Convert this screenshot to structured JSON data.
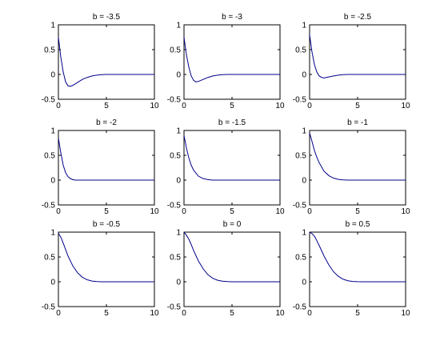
{
  "chart_data": [
    {
      "type": "line",
      "title": "b = -3.5",
      "xlim": [
        0,
        10
      ],
      "ylim": [
        -0.5,
        1
      ],
      "x_ticks": [
        "0",
        "5",
        "10"
      ],
      "y_ticks": [
        "-0.5",
        "0",
        "0.5",
        "1"
      ],
      "series": [
        {
          "color": "#00008b",
          "points": [
            [
              0,
              0.75
            ],
            [
              0.25,
              0.35
            ],
            [
              0.5,
              0.05
            ],
            [
              0.75,
              -0.15
            ],
            [
              1.0,
              -0.23
            ],
            [
              1.25,
              -0.24
            ],
            [
              1.5,
              -0.22
            ],
            [
              2.0,
              -0.16
            ],
            [
              2.5,
              -0.1
            ],
            [
              3.0,
              -0.06
            ],
            [
              3.5,
              -0.03
            ],
            [
              4.0,
              -0.015
            ],
            [
              4.5,
              -0.005
            ],
            [
              5.0,
              0
            ],
            [
              6,
              0
            ],
            [
              8,
              0
            ],
            [
              10,
              0
            ]
          ]
        }
      ]
    },
    {
      "type": "line",
      "title": "b = -3",
      "xlim": [
        0,
        10
      ],
      "ylim": [
        -0.5,
        1
      ],
      "x_ticks": [
        "0",
        "5",
        "10"
      ],
      "y_ticks": [
        "-0.5",
        "0",
        "0.5",
        "1"
      ],
      "series": [
        {
          "color": "#00008b",
          "points": [
            [
              0,
              0.75
            ],
            [
              0.25,
              0.4
            ],
            [
              0.5,
              0.15
            ],
            [
              0.75,
              -0.03
            ],
            [
              1.0,
              -0.12
            ],
            [
              1.25,
              -0.15
            ],
            [
              1.5,
              -0.14
            ],
            [
              2.0,
              -0.1
            ],
            [
              2.5,
              -0.06
            ],
            [
              3.0,
              -0.03
            ],
            [
              3.5,
              -0.015
            ],
            [
              4.0,
              -0.005
            ],
            [
              4.5,
              0
            ],
            [
              6,
              0
            ],
            [
              8,
              0
            ],
            [
              10,
              0
            ]
          ]
        }
      ]
    },
    {
      "type": "line",
      "title": "b = -2.5",
      "xlim": [
        0,
        10
      ],
      "ylim": [
        -0.5,
        1
      ],
      "x_ticks": [
        "0",
        "5",
        "10"
      ],
      "y_ticks": [
        "-0.5",
        "0",
        "0.5",
        "1"
      ],
      "series": [
        {
          "color": "#00008b",
          "points": [
            [
              0,
              0.8
            ],
            [
              0.25,
              0.45
            ],
            [
              0.5,
              0.2
            ],
            [
              0.75,
              0.05
            ],
            [
              1.0,
              -0.03
            ],
            [
              1.25,
              -0.06
            ],
            [
              1.5,
              -0.07
            ],
            [
              2.0,
              -0.05
            ],
            [
              2.5,
              -0.03
            ],
            [
              3.0,
              -0.015
            ],
            [
              3.5,
              -0.005
            ],
            [
              4.0,
              0
            ],
            [
              6,
              0
            ],
            [
              8,
              0
            ],
            [
              10,
              0
            ]
          ]
        }
      ]
    },
    {
      "type": "line",
      "title": "b = -2",
      "xlim": [
        0,
        10
      ],
      "ylim": [
        -0.5,
        1
      ],
      "x_ticks": [
        "0",
        "5",
        "10"
      ],
      "y_ticks": [
        "-0.5",
        "0",
        "0.5",
        "1"
      ],
      "series": [
        {
          "color": "#00008b",
          "points": [
            [
              0,
              0.85
            ],
            [
              0.25,
              0.55
            ],
            [
              0.5,
              0.3
            ],
            [
              0.75,
              0.15
            ],
            [
              1.0,
              0.07
            ],
            [
              1.25,
              0.03
            ],
            [
              1.5,
              0.01
            ],
            [
              1.75,
              0
            ],
            [
              2.0,
              0
            ],
            [
              4,
              0
            ],
            [
              6,
              0
            ],
            [
              8,
              0
            ],
            [
              10,
              0
            ]
          ]
        }
      ]
    },
    {
      "type": "line",
      "title": "b = -1.5",
      "xlim": [
        0,
        10
      ],
      "ylim": [
        -0.5,
        1
      ],
      "x_ticks": [
        "0",
        "5",
        "10"
      ],
      "y_ticks": [
        "-0.5",
        "0",
        "0.5",
        "1"
      ],
      "series": [
        {
          "color": "#00008b",
          "points": [
            [
              0,
              0.9
            ],
            [
              0.25,
              0.65
            ],
            [
              0.5,
              0.45
            ],
            [
              0.75,
              0.3
            ],
            [
              1.0,
              0.2
            ],
            [
              1.5,
              0.08
            ],
            [
              2.0,
              0.03
            ],
            [
              2.5,
              0.01
            ],
            [
              3.0,
              0
            ],
            [
              4,
              0
            ],
            [
              6,
              0
            ],
            [
              8,
              0
            ],
            [
              10,
              0
            ]
          ]
        }
      ]
    },
    {
      "type": "line",
      "title": "b = -1",
      "xlim": [
        0,
        10
      ],
      "ylim": [
        -0.5,
        1
      ],
      "x_ticks": [
        "0",
        "5",
        "10"
      ],
      "y_ticks": [
        "-0.5",
        "0",
        "0.5",
        "1"
      ],
      "series": [
        {
          "color": "#00008b",
          "points": [
            [
              0,
              0.95
            ],
            [
              0.25,
              0.78
            ],
            [
              0.5,
              0.6
            ],
            [
              0.75,
              0.46
            ],
            [
              1.0,
              0.35
            ],
            [
              1.5,
              0.18
            ],
            [
              2.0,
              0.09
            ],
            [
              2.5,
              0.04
            ],
            [
              3.0,
              0.015
            ],
            [
              3.5,
              0.005
            ],
            [
              4.0,
              0
            ],
            [
              6,
              0
            ],
            [
              8,
              0
            ],
            [
              10,
              0
            ]
          ]
        }
      ]
    },
    {
      "type": "line",
      "title": "b = -0.5",
      "xlim": [
        0,
        10
      ],
      "ylim": [
        -0.5,
        1
      ],
      "x_ticks": [
        "0",
        "5",
        "10"
      ],
      "y_ticks": [
        "-0.5",
        "0",
        "0.5",
        "1"
      ],
      "series": [
        {
          "color": "#00008b",
          "points": [
            [
              0,
              0.98
            ],
            [
              0.25,
              0.9
            ],
            [
              0.5,
              0.78
            ],
            [
              0.75,
              0.65
            ],
            [
              1.0,
              0.52
            ],
            [
              1.5,
              0.32
            ],
            [
              2.0,
              0.18
            ],
            [
              2.5,
              0.09
            ],
            [
              3.0,
              0.04
            ],
            [
              3.5,
              0.015
            ],
            [
              4.0,
              0.005
            ],
            [
              4.5,
              0
            ],
            [
              6,
              0
            ],
            [
              8,
              0
            ],
            [
              10,
              0
            ]
          ]
        }
      ]
    },
    {
      "type": "line",
      "title": "b = 0",
      "xlim": [
        0,
        10
      ],
      "ylim": [
        -0.5,
        1
      ],
      "x_ticks": [
        "0",
        "5",
        "10"
      ],
      "y_ticks": [
        "-0.5",
        "0",
        "0.5",
        "1"
      ],
      "series": [
        {
          "color": "#00008b",
          "points": [
            [
              0,
              1.0
            ],
            [
              0.25,
              0.94
            ],
            [
              0.5,
              0.86
            ],
            [
              0.75,
              0.75
            ],
            [
              1.0,
              0.63
            ],
            [
              1.5,
              0.42
            ],
            [
              2.0,
              0.26
            ],
            [
              2.5,
              0.14
            ],
            [
              3.0,
              0.07
            ],
            [
              3.5,
              0.03
            ],
            [
              4.0,
              0.012
            ],
            [
              4.5,
              0.004
            ],
            [
              5.0,
              0
            ],
            [
              6,
              0
            ],
            [
              8,
              0
            ],
            [
              10,
              0
            ]
          ]
        }
      ]
    },
    {
      "type": "line",
      "title": "b = 0.5",
      "xlim": [
        0,
        10
      ],
      "ylim": [
        -0.5,
        1
      ],
      "x_ticks": [
        "0",
        "5",
        "10"
      ],
      "y_ticks": [
        "-0.5",
        "0",
        "0.5",
        "1"
      ],
      "series": [
        {
          "color": "#00008b",
          "points": [
            [
              0,
              1.0
            ],
            [
              0.25,
              0.97
            ],
            [
              0.5,
              0.92
            ],
            [
              0.75,
              0.83
            ],
            [
              1.0,
              0.73
            ],
            [
              1.5,
              0.52
            ],
            [
              2.0,
              0.34
            ],
            [
              2.5,
              0.2
            ],
            [
              3.0,
              0.11
            ],
            [
              3.5,
              0.05
            ],
            [
              4.0,
              0.02
            ],
            [
              4.5,
              0.007
            ],
            [
              5.0,
              0.002
            ],
            [
              5.5,
              0
            ],
            [
              6,
              0
            ],
            [
              8,
              0
            ],
            [
              10,
              0
            ]
          ]
        }
      ]
    }
  ]
}
